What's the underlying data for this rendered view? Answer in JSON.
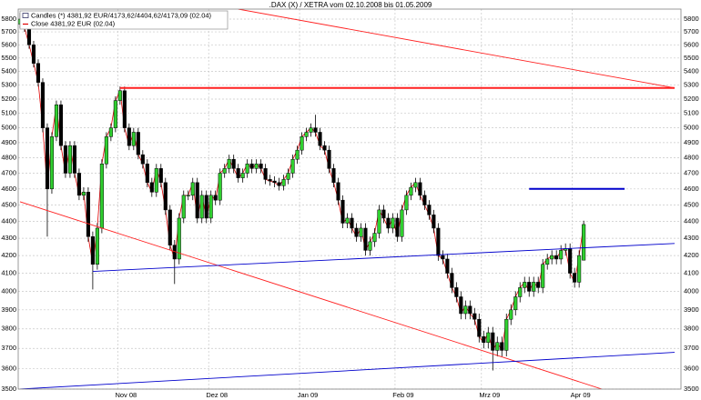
{
  "chart_data": {
    "type": "candlestick",
    "title": ".DAX (X) / XETRA     vom 02.10.2008   bis   01.05.2009",
    "log_y": true,
    "grid": true,
    "legend": "upper-left",
    "ylim": [
      3500,
      5880
    ],
    "yticks": [
      3500,
      3600,
      3700,
      3800,
      3900,
      4000,
      4100,
      4200,
      4300,
      4400,
      4500,
      4600,
      4700,
      4800,
      4900,
      5000,
      5100,
      5200,
      5300,
      5400,
      5500,
      5600,
      5700,
      5800
    ],
    "candles": {
      "name": "Candles (*) 4381,92 EUR/4173,62/4404,62/4173,09 (02.04)",
      "up_color": "#2fd02f",
      "down_color": "#000000"
    },
    "close_line": {
      "name": "Close 4381,92 EUR (02.04)",
      "color": "#e00000"
    },
    "categories": [
      null,
      null,
      null,
      null,
      null,
      null,
      null,
      null,
      null,
      null,
      null,
      null,
      null,
      null,
      null,
      null,
      null,
      null,
      null,
      null,
      null,
      null,
      "Nov 08",
      null,
      null,
      null,
      null,
      null,
      null,
      null,
      null,
      null,
      null,
      null,
      null,
      null,
      null,
      null,
      null,
      null,
      null,
      null,
      "Dez 08",
      null,
      null,
      null,
      null,
      null,
      null,
      null,
      null,
      null,
      null,
      null,
      null,
      null,
      null,
      null,
      null,
      null,
      null,
      null,
      "Jan 09",
      null,
      null,
      null,
      null,
      null,
      null,
      null,
      null,
      null,
      null,
      null,
      null,
      null,
      null,
      null,
      null,
      null,
      null,
      null,
      null,
      "Feb 09",
      null,
      null,
      null,
      null,
      null,
      null,
      null,
      null,
      null,
      null,
      null,
      null,
      null,
      null,
      null,
      null,
      null,
      null,
      "Mrz 09",
      null,
      null,
      null,
      null,
      null,
      null,
      null,
      null,
      null,
      null,
      null,
      null,
      null,
      null,
      null,
      null,
      null,
      null,
      null,
      "Apr 09",
      null,
      null,
      null,
      null,
      null,
      null,
      null,
      null,
      null,
      null,
      null,
      null,
      null,
      null,
      null,
      null,
      null,
      null,
      null,
      null,
      null,
      null,
      null
    ],
    "open": [
      5760,
      5800,
      5730,
      5600,
      5460,
      5320,
      5000,
      4600,
      4940,
      5160,
      4880,
      4700,
      4880,
      4700,
      4560,
      4580,
      4310,
      4150,
      4360,
      4760,
      4940,
      5000,
      5190,
      5260,
      5000,
      4880,
      4970,
      4820,
      4760,
      4640,
      4580,
      4730,
      4640,
      4470,
      4260,
      4180,
      4420,
      4560,
      4560,
      4640,
      4420,
      4560,
      4420,
      4560,
      4530,
      4700,
      4730,
      4790,
      4730,
      4670,
      4700,
      4760,
      4730,
      4760,
      4730,
      4660,
      4650,
      4640,
      4620,
      4660,
      4700,
      4790,
      4850,
      4940,
      4970,
      5000,
      4970,
      4880,
      4850,
      4730,
      4640,
      4530,
      4390,
      4420,
      4360,
      4310,
      4360,
      4230,
      4280,
      4330,
      4470,
      4420,
      4360,
      4420,
      4310,
      4470,
      4560,
      4610,
      4640,
      4560,
      4500,
      4440,
      4360,
      4200,
      4180,
      4100,
      4020,
      3970,
      3880,
      3920,
      3880,
      3850,
      3760,
      3730,
      3780,
      3690,
      3730,
      3690,
      3850,
      3900,
      3970,
      4020,
      4050,
      4000,
      4050,
      4020,
      4150,
      4180,
      4200,
      4180,
      4230,
      4240,
      4100,
      4050,
      4173.62,
      null,
      null,
      null,
      null,
      null,
      null,
      null,
      null,
      null,
      null,
      null,
      null,
      null,
      null,
      null,
      null,
      null,
      null,
      null,
      null,
      null
    ],
    "high": [
      5850,
      5830,
      5760,
      5630,
      5490,
      5350,
      5030,
      4970,
      5190,
      5190,
      4910,
      4910,
      4910,
      4730,
      4610,
      4610,
      4340,
      4390,
      4790,
      4970,
      5030,
      5220,
      5290,
      5290,
      5030,
      5000,
      5000,
      4850,
      4790,
      4670,
      4760,
      4760,
      4670,
      4500,
      4290,
      4450,
      4590,
      4590,
      4670,
      4670,
      4590,
      4590,
      4590,
      4590,
      4730,
      4760,
      4820,
      4820,
      4760,
      4730,
      4790,
      4790,
      4790,
      4790,
      4760,
      4690,
      4680,
      4670,
      4690,
      4730,
      4820,
      4880,
      4970,
      5000,
      5030,
      5090,
      5000,
      4910,
      4880,
      4760,
      4670,
      4560,
      4450,
      4450,
      4390,
      4390,
      4390,
      4310,
      4360,
      4500,
      4500,
      4450,
      4450,
      4450,
      4500,
      4590,
      4640,
      4670,
      4670,
      4590,
      4530,
      4470,
      4390,
      4230,
      4210,
      4130,
      4050,
      4000,
      3950,
      3950,
      3910,
      3880,
      3790,
      3810,
      3810,
      3760,
      3760,
      3880,
      3930,
      4000,
      4050,
      4080,
      4080,
      4080,
      4080,
      4180,
      4210,
      4230,
      4230,
      4260,
      4270,
      4270,
      4130,
      4230,
      4404.62,
      null,
      null,
      null,
      null,
      null,
      null,
      null,
      null,
      null,
      null,
      null,
      null,
      null,
      null,
      null,
      null,
      null,
      null,
      null,
      null,
      null
    ],
    "low": [
      5730,
      5700,
      5570,
      5430,
      5290,
      4970,
      4310,
      4570,
      4910,
      4850,
      4670,
      4670,
      4670,
      4530,
      4530,
      4280,
      4010,
      4120,
      4330,
      4730,
      4910,
      4970,
      5160,
      4970,
      4850,
      4850,
      4790,
      4730,
      4610,
      4550,
      4550,
      4610,
      4440,
      4230,
      4040,
      4150,
      4390,
      4530,
      4530,
      4390,
      4390,
      4390,
      4390,
      4500,
      4500,
      4670,
      4700,
      4700,
      4640,
      4640,
      4670,
      4700,
      4700,
      4700,
      4630,
      4620,
      4610,
      4590,
      4590,
      4630,
      4670,
      4760,
      4820,
      4910,
      4940,
      4940,
      4850,
      4820,
      4700,
      4610,
      4500,
      4360,
      4360,
      4330,
      4280,
      4280,
      4200,
      4200,
      4250,
      4300,
      4390,
      4330,
      4330,
      4280,
      4280,
      4440,
      4530,
      4580,
      4530,
      4470,
      4410,
      4330,
      4170,
      4150,
      4070,
      3990,
      3940,
      3850,
      3850,
      3850,
      3820,
      3730,
      3700,
      3700,
      3590,
      3660,
      3660,
      3660,
      3820,
      3870,
      3940,
      3990,
      3970,
      3970,
      3990,
      3990,
      4120,
      4150,
      4150,
      4150,
      4200,
      4070,
      4020,
      4020,
      4173.09,
      null,
      null,
      null,
      null,
      null,
      null,
      null,
      null,
      null,
      null,
      null,
      null,
      null,
      null,
      null,
      null,
      null,
      null,
      null,
      null,
      null
    ],
    "close": [
      5800,
      5730,
      5600,
      5460,
      5320,
      5000,
      4600,
      4940,
      5160,
      4880,
      4700,
      4880,
      4700,
      4560,
      4580,
      4310,
      4150,
      4360,
      4760,
      4940,
      5000,
      5190,
      5260,
      5000,
      4880,
      4970,
      4820,
      4760,
      4640,
      4580,
      4730,
      4640,
      4470,
      4260,
      4180,
      4420,
      4560,
      4560,
      4640,
      4420,
      4560,
      4420,
      4560,
      4530,
      4700,
      4730,
      4790,
      4730,
      4670,
      4700,
      4760,
      4730,
      4760,
      4730,
      4660,
      4650,
      4640,
      4620,
      4660,
      4700,
      4790,
      4850,
      4940,
      4970,
      5000,
      4970,
      4880,
      4850,
      4730,
      4640,
      4530,
      4390,
      4420,
      4360,
      4310,
      4360,
      4230,
      4280,
      4330,
      4470,
      4420,
      4360,
      4420,
      4310,
      4470,
      4560,
      4610,
      4640,
      4560,
      4500,
      4440,
      4360,
      4200,
      4180,
      4100,
      4020,
      3970,
      3880,
      3920,
      3880,
      3850,
      3760,
      3730,
      3780,
      3690,
      3730,
      3690,
      3850,
      3900,
      3970,
      4020,
      4050,
      4000,
      4050,
      4020,
      4150,
      4180,
      4200,
      4180,
      4230,
      4240,
      4100,
      4050,
      4200,
      4381.92,
      null,
      null,
      null,
      null,
      null,
      null,
      null,
      null,
      null,
      null,
      null,
      null,
      null,
      null,
      null,
      null,
      null,
      null,
      null,
      null,
      null
    ],
    "trend_lines": [
      {
        "color": "#ff2020",
        "points": [
          {
            "x": 48,
            "y": 5880
          },
          {
            "x": 144,
            "y": 5280
          }
        ]
      },
      {
        "color": "#ff2020",
        "points": [
          {
            "x": 22,
            "y": 5280
          },
          {
            "x": 144,
            "y": 5280
          }
        ]
      },
      {
        "color": "#ff2020",
        "points": [
          {
            "x": 0,
            "y": 4520
          },
          {
            "x": 128,
            "y": 3500
          }
        ]
      },
      {
        "color": "#0000cc",
        "points": [
          {
            "x": 112,
            "y": 4600
          },
          {
            "x": 133,
            "y": 4600
          }
        ]
      },
      {
        "color": "#0000cc",
        "points": [
          {
            "x": 16,
            "y": 4110
          },
          {
            "x": 144,
            "y": 4270
          }
        ]
      },
      {
        "color": "#0000cc",
        "points": [
          {
            "x": 0,
            "y": 3500
          },
          {
            "x": 144,
            "y": 3680
          }
        ]
      }
    ]
  }
}
